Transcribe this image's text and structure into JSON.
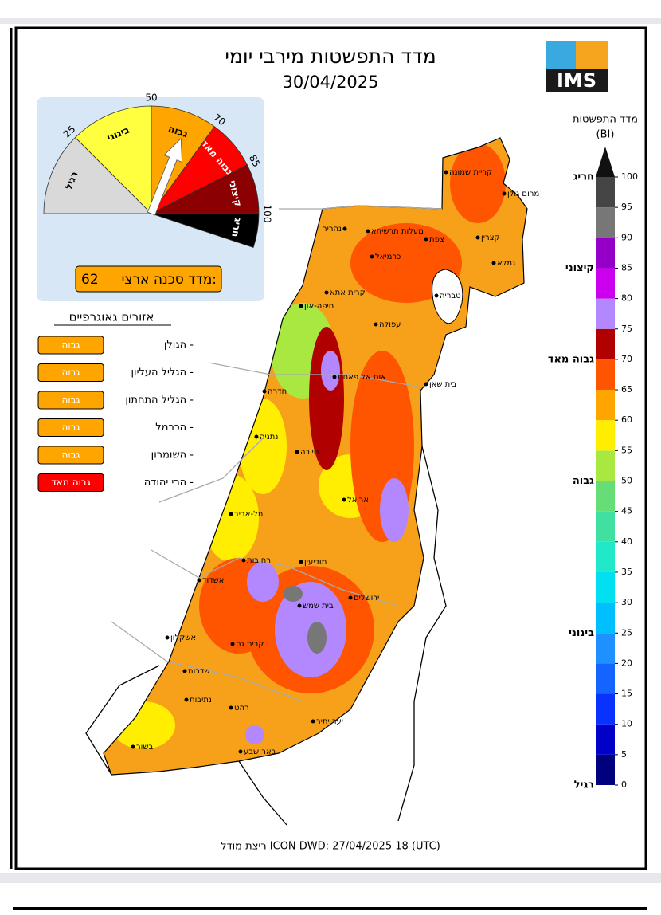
{
  "header": {
    "title": "מדד התפשטות מירבי יומי",
    "date": "30/04/2025",
    "logo": "IMS"
  },
  "gauge": {
    "range": [
      0,
      100
    ],
    "ticks": [
      25,
      50,
      70,
      85,
      100
    ],
    "levels": [
      {
        "name": "רגיל",
        "color": "#d9d9d9"
      },
      {
        "name": "בינוני",
        "color": "#ffff40"
      },
      {
        "name": "גבוה",
        "color": "#ffa500"
      },
      {
        "name": "גבוה מאד",
        "color": "#ff0000"
      },
      {
        "name": "קיצוני",
        "color": "#8b0000"
      },
      {
        "name": "חריג",
        "color": "#000000"
      }
    ],
    "index_label": "מדד סכנה ארצי:",
    "index": 62
  },
  "regions": {
    "title": "אזורים גאוגרפיים",
    "items": [
      {
        "name": "הגולן -",
        "level": "גבוה",
        "color": "#ffa500"
      },
      {
        "name": "הגליל העליון -",
        "level": "גבוה",
        "color": "#ffa500"
      },
      {
        "name": "הגליל התחתון -",
        "level": "גבוה",
        "color": "#ffa500"
      },
      {
        "name": "הכרמל -",
        "level": "גבוה",
        "color": "#ffa500"
      },
      {
        "name": "השומרון -",
        "level": "גבוה",
        "color": "#ffa500"
      },
      {
        "name": "הרי יהודה -",
        "level": "גבוה מאד",
        "color": "#ff0000"
      }
    ]
  },
  "colorbar": {
    "title": "מדד התפשטות",
    "unit": "(BI)",
    "range": [
      0,
      100
    ],
    "ticks": [
      0,
      5,
      10,
      15,
      20,
      25,
      30,
      35,
      40,
      45,
      50,
      55,
      60,
      65,
      70,
      75,
      80,
      85,
      90,
      95,
      100
    ],
    "colors": [
      "#00007f",
      "#0000c8",
      "#0a32ff",
      "#1464ff",
      "#1e90ff",
      "#00bfff",
      "#00e0f0",
      "#20e8c8",
      "#40e0a0",
      "#66dd77",
      "#a8e840",
      "#ffee00",
      "#ffa500",
      "#ff5500",
      "#b00000",
      "#b388ff",
      "#cc00ee",
      "#9400c8",
      "#777777",
      "#454545",
      "#111111"
    ],
    "levels": [
      {
        "label": "רגיל",
        "value": 0
      },
      {
        "label": "בינוני",
        "value": 25
      },
      {
        "label": "גבוה",
        "value": 50
      },
      {
        "label": "גבוה מאד",
        "value": 70
      },
      {
        "label": "קיצוני",
        "value": 85
      },
      {
        "label": "חריג",
        "value": 100
      }
    ]
  },
  "cities": [
    "קריית שמונה",
    "מרום גולן",
    "נהריה",
    "מעלות תרשיחא",
    "צפת",
    "קצרין",
    "כרמיאל",
    "גמלא",
    "טבריה",
    "קרית אתא",
    "חיפה-און",
    "עפולה",
    "אום אל פאחם",
    "בית שאן",
    "חדרה",
    "נתניה",
    "טייבה",
    "אריאל",
    "תל-אביב",
    "רחובות",
    "מודיעין",
    "אשדוד",
    "ירושלים",
    "בית שמש",
    "אשקלון",
    "קרית גת",
    "שדרות",
    "נתיבות",
    "רהט",
    "יער יתיר",
    "באר שבע",
    "בשור"
  ],
  "footer": "ריצת מודל ICON DWD: 27/04/2025 18 (UTC)"
}
